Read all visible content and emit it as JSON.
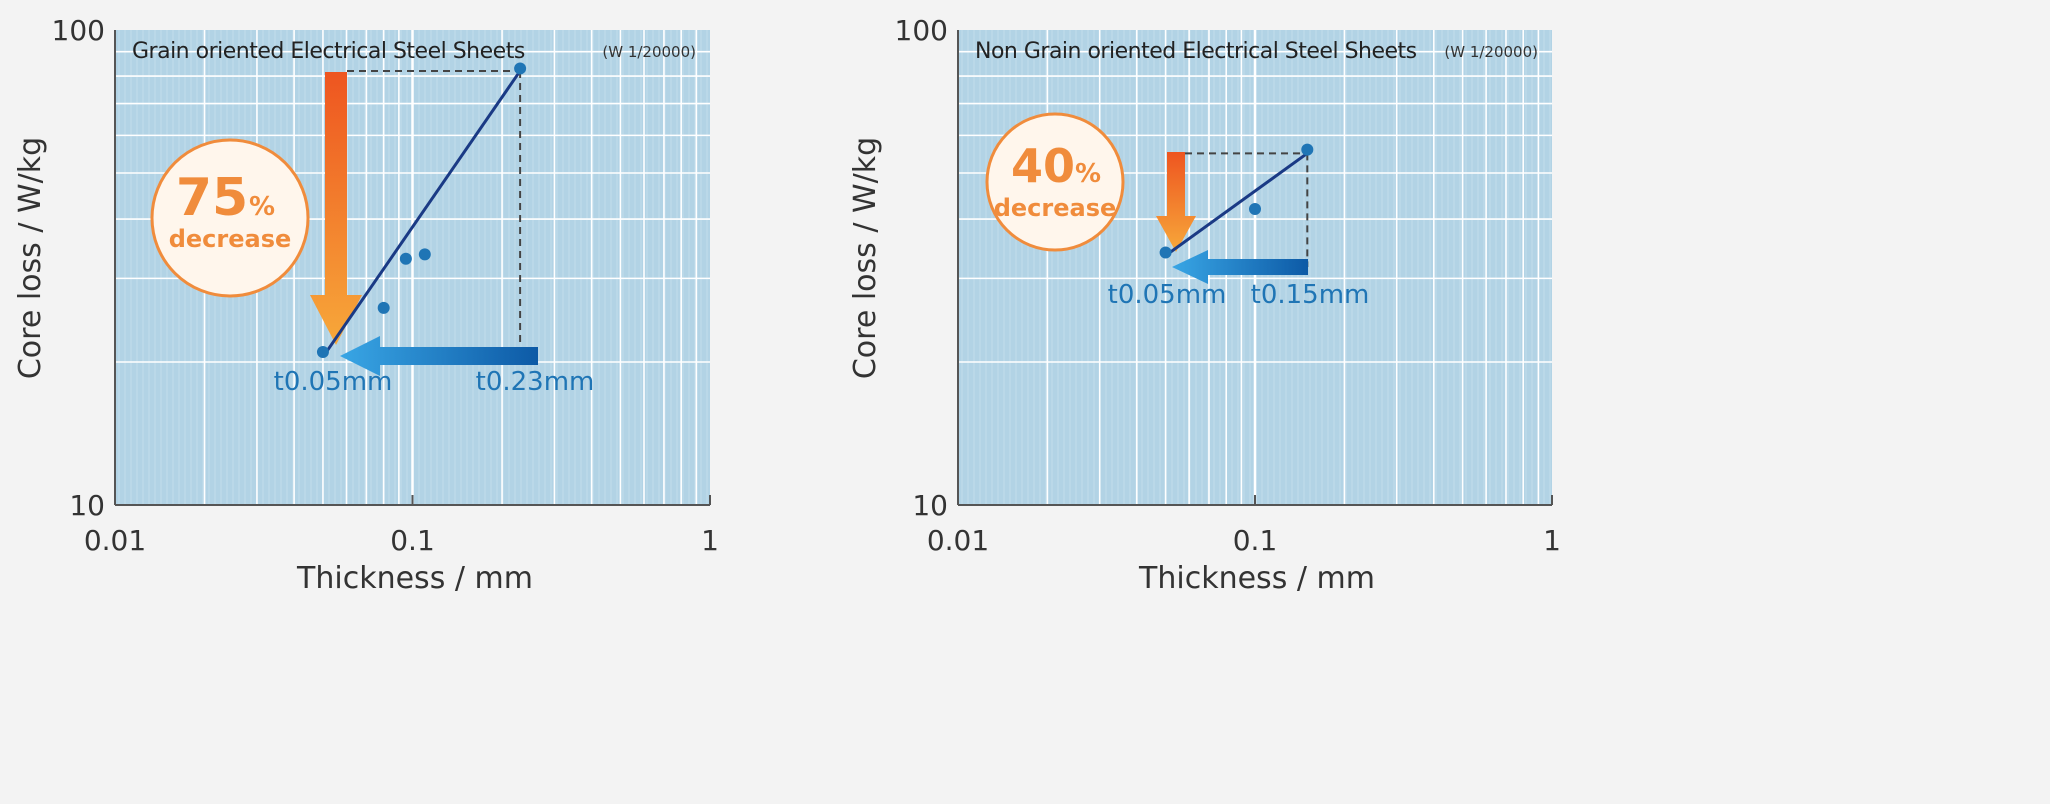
{
  "chart_data": [
    {
      "type": "scatter",
      "title": "Grain oriented Electrical Steel Sheets",
      "subtitle": "(W 1/20000)",
      "xlabel": "Thickness  /  mm",
      "ylabel": "Core loss  /  W/kg",
      "xscale": "log",
      "yscale": "log",
      "xlim": [
        0.01,
        1
      ],
      "ylim": [
        10,
        100
      ],
      "x_ticks": [
        "0.01",
        "0.1",
        "1"
      ],
      "y_ticks": [
        "10",
        "100"
      ],
      "grid": true,
      "points": [
        [
          0.05,
          21.0
        ],
        [
          0.08,
          26.0
        ],
        [
          0.095,
          33.0
        ],
        [
          0.11,
          33.7
        ],
        [
          0.23,
          83.0
        ]
      ],
      "trend_line": [
        [
          0.05,
          20.5
        ],
        [
          0.23,
          82.0
        ]
      ],
      "annotations": {
        "percent": "75",
        "percent_sign": "%",
        "word": "decrease",
        "label_low": "t0.05mm",
        "label_high": "t0.23mm"
      },
      "colors": {
        "plot_bg": "#b2d3e5",
        "grid": "#ffffff",
        "line": "#1a3a85",
        "point": "#1f75b5",
        "accent": "#f08c3c",
        "label": "#1f75b5"
      }
    },
    {
      "type": "scatter",
      "title": "Non Grain oriented Electrical Steel Sheets",
      "subtitle": "(W 1/20000)",
      "xlabel": "Thickness  /  mm",
      "ylabel": "Core loss  /  W/kg",
      "xscale": "log",
      "yscale": "log",
      "xlim": [
        0.01,
        1
      ],
      "ylim": [
        10,
        100
      ],
      "x_ticks": [
        "0.01",
        "0.1",
        "1"
      ],
      "y_ticks": [
        "10",
        "100"
      ],
      "grid": true,
      "points": [
        [
          0.05,
          34.0
        ],
        [
          0.1,
          42.0
        ],
        [
          0.15,
          56.0
        ]
      ],
      "trend_line": [
        [
          0.05,
          33.5
        ],
        [
          0.15,
          55.0
        ]
      ],
      "annotations": {
        "percent": "40",
        "percent_sign": "%",
        "word": "decrease",
        "label_low": "t0.05mm",
        "label_high": "t0.15mm"
      },
      "colors": {
        "plot_bg": "#b2d3e5",
        "grid": "#ffffff",
        "line": "#1a3a85",
        "point": "#1f75b5",
        "accent": "#f08c3c",
        "label": "#1f75b5"
      }
    }
  ]
}
